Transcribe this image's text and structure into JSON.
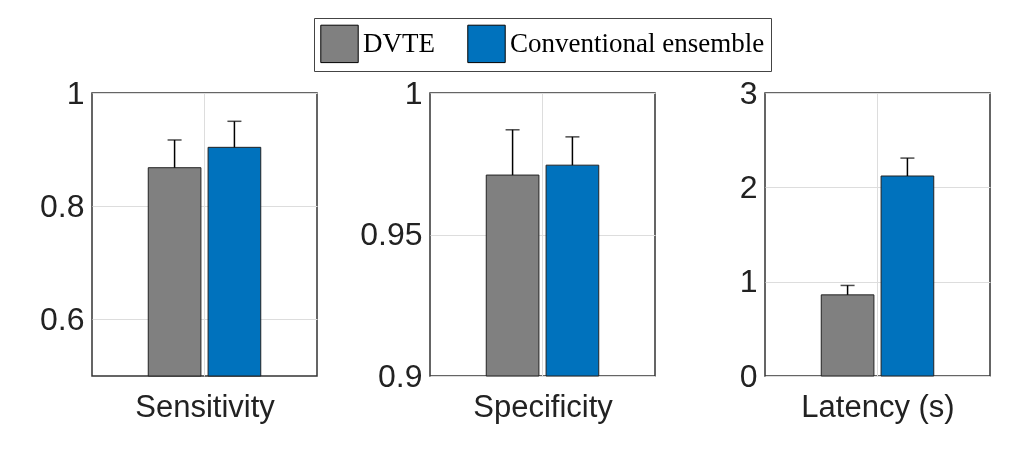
{
  "chart_data": [
    {
      "type": "bar",
      "categories": [
        null
      ],
      "xlabel": "Sensitivity",
      "ylim": [
        0.5,
        1
      ],
      "yticks": [
        0.6,
        0.8,
        1
      ],
      "grid": true,
      "series": [
        {
          "color": "#808080",
          "values": [
            0.868
          ],
          "errors": [
            [
              0.868,
              0.917
            ]
          ]
        },
        {
          "color": "#0072bd",
          "values": [
            0.904
          ],
          "errors": [
            [
              0.904,
              0.95
            ]
          ]
        }
      ]
    },
    {
      "type": "bar",
      "categories": [
        null
      ],
      "xlabel": "Specificity",
      "ylim": [
        0.9,
        1
      ],
      "yticks": [
        0.9,
        0.95,
        1
      ],
      "grid": true,
      "legend": "top",
      "series": [
        {
          "name": "DVTE",
          "color": "#808080",
          "values": [
            0.971
          ],
          "errors": [
            [
              0.971,
              0.987
            ]
          ]
        },
        {
          "name": "Conventional ensemble",
          "color": "#0072bd",
          "values": [
            0.9745
          ],
          "errors": [
            [
              0.9745,
              0.9845
            ]
          ]
        }
      ]
    },
    {
      "type": "bar",
      "categories": [
        null
      ],
      "xlabel": "Latency (s)",
      "ylim": [
        0,
        3
      ],
      "yticks": [
        0,
        1,
        2,
        3
      ],
      "grid": true,
      "series": [
        {
          "color": "#808080",
          "values": [
            0.86
          ],
          "errors": [
            [
              0.86,
              0.96
            ]
          ]
        },
        {
          "color": "#0072bd",
          "values": [
            2.12
          ],
          "errors": [
            [
              2.12,
              2.31
            ]
          ]
        }
      ]
    }
  ]
}
